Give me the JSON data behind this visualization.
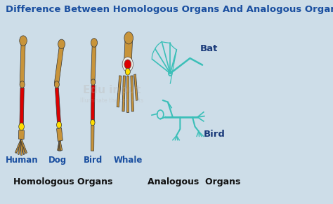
{
  "title": "Difference Between Homologous Organs And Analogous Organs",
  "title_color": "#1a4fa0",
  "title_fontsize": 9.5,
  "bg_color": "#cddde8",
  "homologous_label": "Homologous Organs",
  "analogous_label": "Analogous  Organs",
  "section_label_fontsize": 9,
  "section_label_color": "#111111",
  "animal_labels": [
    "Human",
    "Dog",
    "Bird",
    "Whale"
  ],
  "animal_label_color": "#1a4fa0",
  "animal_label_fontsize": 8.5,
  "bat_label": "Bat",
  "bird_label": "Bird",
  "sub_label_color": "#1a3a7a",
  "sub_label_fontsize": 8.5,
  "bone_tan": "#c8943a",
  "bone_dark": "#8B5E1A",
  "bone_red": "#dd0000",
  "bone_yellow": "#ffdd00",
  "bone_white": "#f0ebe0",
  "outline_color": "#3bbfb8",
  "watermark_color": "#b8b0a8"
}
